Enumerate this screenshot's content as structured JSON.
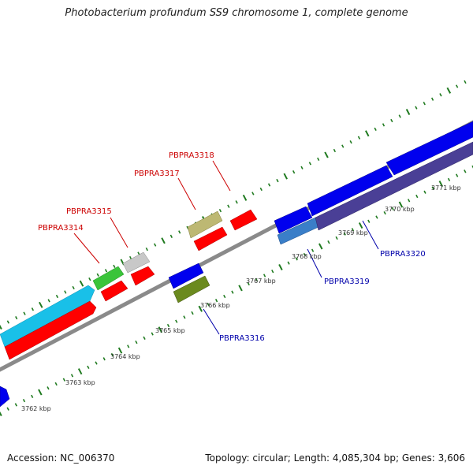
{
  "title": "Photobacterium profundum SS9 chromosome 1, complete genome",
  "footer": {
    "accession": "Accession: NC_006370",
    "topology": "Topology: circular; Length: 4,085,304 bp; Genes: 3,606"
  },
  "colors": {
    "backbone": "#8a8a8a",
    "tick": "#1f7a1f",
    "label_red": "#cc0000",
    "label_blue": "#0000aa"
  },
  "scale_labels": [
    "3762 kbp",
    "3763 kbp",
    "3764 kbp",
    "3765 kbp",
    "3766 kbp",
    "3767 kbp",
    "3768 kbp",
    "3769 kbp",
    "3770 kbp",
    "3771 kbp"
  ],
  "genes": [
    {
      "id": "PBPRA3314",
      "color": "#00bde8",
      "strand": "+"
    },
    {
      "id": "PBPRA3315",
      "color": "#35c435",
      "strand": "+"
    },
    {
      "id": "PBPRA3316",
      "color": "#6b8a1e",
      "strand": "-"
    },
    {
      "id": "PBPRA3317",
      "color": "#b7b56a",
      "strand": "+"
    },
    {
      "id": "PBPRA3318",
      "color": "#cc0000",
      "strand": "+"
    },
    {
      "id": "PBPRA3319",
      "color": "#4d88c8",
      "strand": "-"
    },
    {
      "id": "PBPRA3320",
      "color": "#4a3f96",
      "strand": "-"
    }
  ]
}
